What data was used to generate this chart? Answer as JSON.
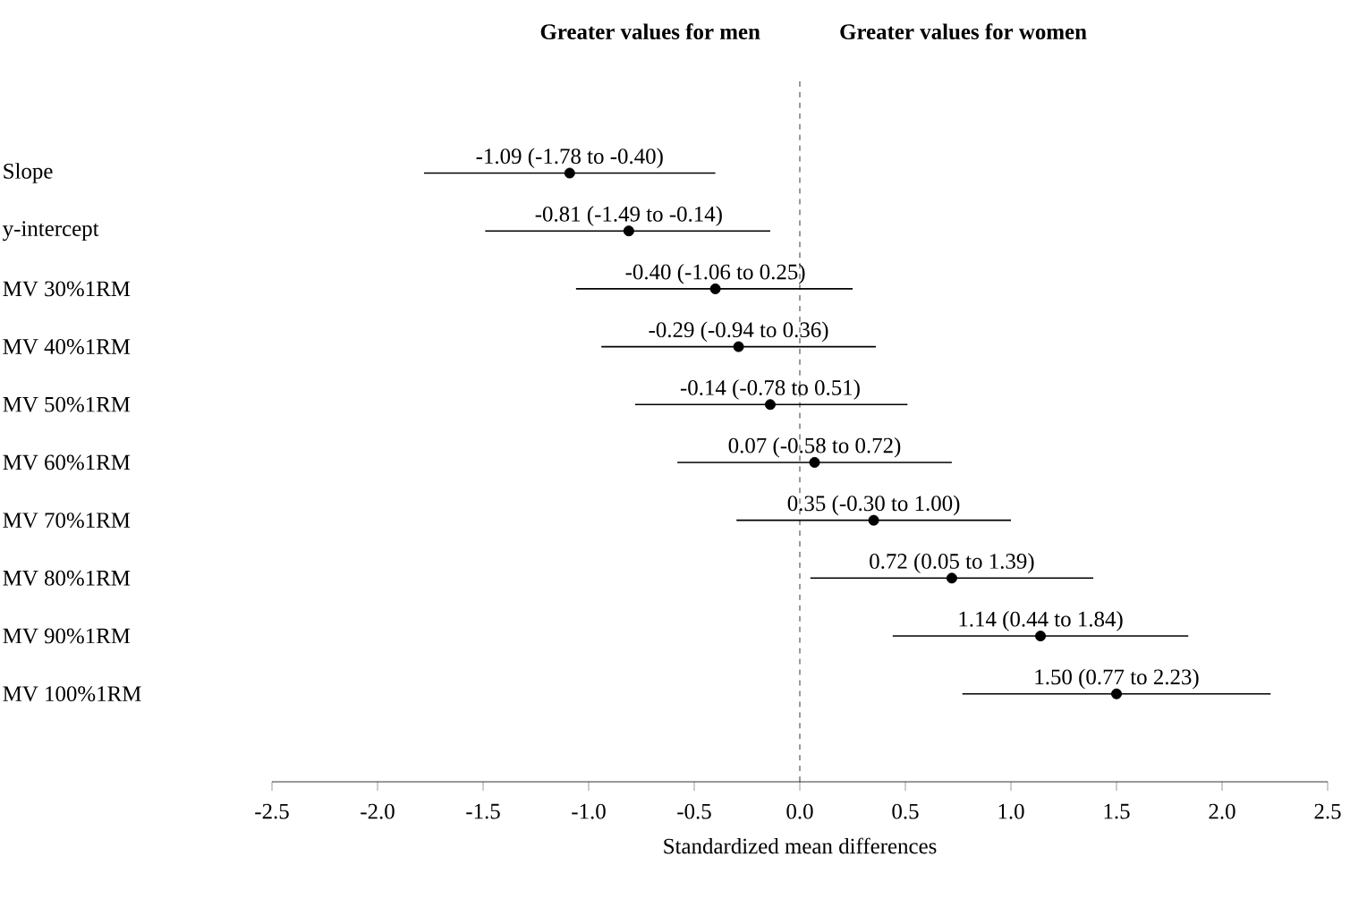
{
  "chart_data": {
    "type": "scatter",
    "orientation": "horizontal",
    "categories": [
      "Slope",
      "y-intercept",
      "MV 30%1RM",
      "MV 40%1RM",
      "MV 50%1RM",
      "MV 60%1RM",
      "MV 70%1RM",
      "MV 80%1RM",
      "MV 90%1RM",
      "MV 100%1RM"
    ],
    "values": [
      -1.09,
      -0.81,
      -0.4,
      -0.29,
      -0.14,
      0.07,
      0.35,
      0.72,
      1.14,
      1.5
    ],
    "errors": [
      [
        -1.78,
        -0.4
      ],
      [
        -1.49,
        -0.14
      ],
      [
        -1.06,
        0.25
      ],
      [
        -0.94,
        0.36
      ],
      [
        -0.78,
        0.51
      ],
      [
        -0.58,
        0.72
      ],
      [
        -0.3,
        1.0
      ],
      [
        0.05,
        1.39
      ],
      [
        0.44,
        1.84
      ],
      [
        0.77,
        2.23
      ]
    ],
    "value_labels": [
      "-1.09 (-1.78 to -0.40)",
      "-0.81 (-1.49 to -0.14)",
      "-0.40 (-1.06 to 0.25)",
      "-0.29 (-0.94 to 0.36)",
      "-0.14 (-0.78 to 0.51)",
      "0.07 (-0.58 to 0.72)",
      "0.35 (-0.30 to 1.00)",
      "0.72 (0.05 to 1.39)",
      "1.14 (0.44 to 1.84)",
      "1.50 (0.77 to 2.23)"
    ],
    "color": "#000000",
    "xlim": [
      -2.5,
      2.5
    ],
    "xticks": [
      -2.5,
      {
        "value": -2,
        "label": "-2.0"
      },
      -1.5,
      {
        "value": -1,
        "label": "-1.0"
      },
      -0.5,
      {
        "value": 0,
        "label": "0.0"
      },
      0.5,
      {
        "value": 1,
        "label": "1.0"
      },
      1.5,
      {
        "value": 2,
        "label": "2.0"
      },
      2.5
    ],
    "xlabel": "Standardized mean differences",
    "annotations": [
      "Greater values for men",
      "Greater values for women"
    ],
    "ref_lines": [
      {
        "axis": "x",
        "value": 0,
        "line_style": "dashed"
      }
    ]
  }
}
